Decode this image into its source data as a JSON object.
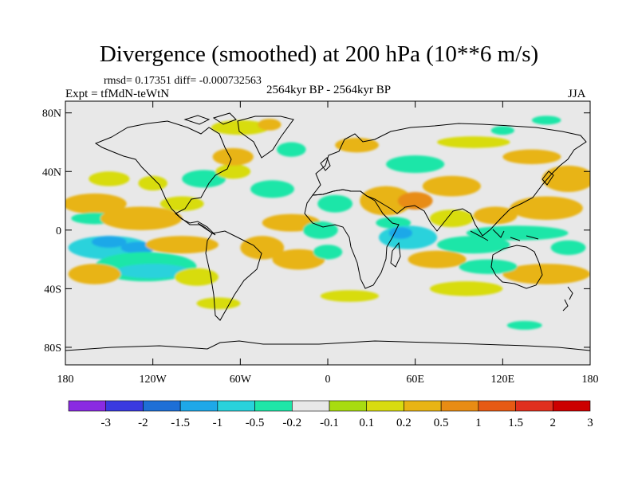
{
  "header": {
    "title": "Divergence (smoothed) at 200 hPa (10**6 m/s)",
    "stats": "rmsd= 0.17351  diff= -0.000732563",
    "expt": "Expt = tfMdN-teWtN",
    "period": "2564kyr BP - 2564kyr BP",
    "season": "JJA"
  },
  "chart_data": {
    "type": "heatmap",
    "title": "Divergence (smoothed) at 200 hPa (10**6 m/s)",
    "subtitle": "2564kyr BP - 2564kyr BP",
    "season": "JJA",
    "xlabel": "",
    "ylabel": "",
    "xlim": [
      -180,
      180
    ],
    "ylim": [
      -90,
      90
    ],
    "x_ticks": [
      -180,
      -120,
      -60,
      0,
      60,
      120,
      180
    ],
    "x_tick_labels": [
      "180",
      "120W",
      "60W",
      "0",
      "60E",
      "120E",
      "180"
    ],
    "y_ticks": [
      80,
      40,
      0,
      -40,
      -80
    ],
    "y_tick_labels": [
      "80N",
      "40N",
      "0",
      "40S",
      "80S"
    ],
    "colorbar": {
      "levels": [
        -3,
        -2,
        -1.5,
        -1,
        -0.5,
        -0.2,
        -0.1,
        0.1,
        0.2,
        0.5,
        1,
        1.5,
        2,
        3
      ],
      "labels": [
        "-3",
        "-2",
        "-1.5",
        "-1",
        "-0.5",
        "-0.2",
        "-0.1",
        "0.1",
        "0.2",
        "0.5",
        "1",
        "1.5",
        "2",
        "3"
      ],
      "colors": [
        "#8a2be2",
        "#3a3ae0",
        "#1e6fd6",
        "#1ea8e8",
        "#29d2dc",
        "#1ee6a8",
        "#e8e8e8",
        "#a8dc10",
        "#d8dc10",
        "#e8b414",
        "#e88c14",
        "#e65a14",
        "#e0301e",
        "#cc0000"
      ]
    },
    "blobs": [
      {
        "lon": -160,
        "lat": 18,
        "rlon": 22,
        "rlat": 7,
        "value": 0.3
      },
      {
        "lon": -160,
        "lat": 8,
        "rlon": 16,
        "rlat": 4,
        "value": -0.3
      },
      {
        "lon": -128,
        "lat": 8,
        "rlon": 28,
        "rlat": 8,
        "value": 0.3
      },
      {
        "lon": -150,
        "lat": -12,
        "rlon": 28,
        "rlat": 8,
        "value": -0.6
      },
      {
        "lon": -150,
        "lat": -8,
        "rlon": 12,
        "rlat": 4,
        "value": -1.1
      },
      {
        "lon": -130,
        "lat": -12,
        "rlon": 12,
        "rlat": 4,
        "value": -1.1
      },
      {
        "lon": -125,
        "lat": -25,
        "rlon": 35,
        "rlat": 10,
        "value": -0.3
      },
      {
        "lon": -120,
        "lat": -28,
        "rlon": 25,
        "rlat": 5,
        "value": -0.7
      },
      {
        "lon": -160,
        "lat": -30,
        "rlon": 18,
        "rlat": 7,
        "value": 0.4
      },
      {
        "lon": -100,
        "lat": -10,
        "rlon": 25,
        "rlat": 6,
        "value": 0.3
      },
      {
        "lon": -90,
        "lat": -32,
        "rlon": 15,
        "rlat": 6,
        "value": 0.15
      },
      {
        "lon": -150,
        "lat": 35,
        "rlon": 14,
        "rlat": 5,
        "value": 0.15
      },
      {
        "lon": -120,
        "lat": 32,
        "rlon": 10,
        "rlat": 5,
        "value": 0.15
      },
      {
        "lon": -100,
        "lat": 18,
        "rlon": 15,
        "rlat": 5,
        "value": 0.15
      },
      {
        "lon": -85,
        "lat": 35,
        "rlon": 15,
        "rlat": 6,
        "value": -0.3
      },
      {
        "lon": -65,
        "lat": 40,
        "rlon": 12,
        "rlat": 5,
        "value": 0.15
      },
      {
        "lon": -65,
        "lat": 50,
        "rlon": 14,
        "rlat": 6,
        "value": 0.3
      },
      {
        "lon": -60,
        "lat": 70,
        "rlon": 20,
        "rlat": 5,
        "value": 0.15
      },
      {
        "lon": -25,
        "lat": 55,
        "rlon": 10,
        "rlat": 5,
        "value": -0.3
      },
      {
        "lon": -38,
        "lat": 28,
        "rlon": 15,
        "rlat": 6,
        "value": -0.3
      },
      {
        "lon": -25,
        "lat": 5,
        "rlon": 20,
        "rlat": 6,
        "value": 0.3
      },
      {
        "lon": -45,
        "lat": -12,
        "rlon": 15,
        "rlat": 8,
        "value": 0.3
      },
      {
        "lon": -20,
        "lat": -20,
        "rlon": 18,
        "rlat": 7,
        "value": 0.3
      },
      {
        "lon": -5,
        "lat": 0,
        "rlon": 12,
        "rlat": 6,
        "value": -0.3
      },
      {
        "lon": 0,
        "lat": -15,
        "rlon": 10,
        "rlat": 5,
        "value": -0.3
      },
      {
        "lon": 5,
        "lat": 18,
        "rlon": 12,
        "rlat": 6,
        "value": -0.3
      },
      {
        "lon": 40,
        "lat": 20,
        "rlon": 18,
        "rlat": 10,
        "value": 0.3
      },
      {
        "lon": 45,
        "lat": 5,
        "rlon": 12,
        "rlat": 4,
        "value": -0.3
      },
      {
        "lon": 55,
        "lat": -5,
        "rlon": 20,
        "rlat": 8,
        "value": -0.6
      },
      {
        "lon": 50,
        "lat": -2,
        "rlon": 8,
        "rlat": 4,
        "value": -1.1
      },
      {
        "lon": 60,
        "lat": 20,
        "rlon": 12,
        "rlat": 6,
        "value": 0.6
      },
      {
        "lon": 85,
        "lat": 30,
        "rlon": 20,
        "rlat": 7,
        "value": 0.3
      },
      {
        "lon": 85,
        "lat": 8,
        "rlon": 15,
        "rlat": 6,
        "value": 0.15
      },
      {
        "lon": 75,
        "lat": -20,
        "rlon": 20,
        "rlat": 6,
        "value": 0.3
      },
      {
        "lon": 100,
        "lat": -10,
        "rlon": 25,
        "rlat": 6,
        "value": -0.3
      },
      {
        "lon": 115,
        "lat": 10,
        "rlon": 15,
        "rlat": 6,
        "value": 0.3
      },
      {
        "lon": 130,
        "lat": -2,
        "rlon": 35,
        "rlat": 5,
        "value": -0.5
      },
      {
        "lon": 150,
        "lat": 15,
        "rlon": 25,
        "rlat": 8,
        "value": 0.3
      },
      {
        "lon": 165,
        "lat": 35,
        "rlon": 18,
        "rlat": 9,
        "value": 0.3
      },
      {
        "lon": 140,
        "lat": 50,
        "rlon": 20,
        "rlat": 5,
        "value": 0.3
      },
      {
        "lon": 100,
        "lat": 60,
        "rlon": 25,
        "rlat": 4,
        "value": 0.15
      },
      {
        "lon": 60,
        "lat": 45,
        "rlon": 20,
        "rlat": 6,
        "value": -0.3
      },
      {
        "lon": 20,
        "lat": 58,
        "rlon": 15,
        "rlat": 5,
        "value": 0.3
      },
      {
        "lon": 150,
        "lat": -30,
        "rlon": 30,
        "rlat": 7,
        "value": 0.3
      },
      {
        "lon": 165,
        "lat": -12,
        "rlon": 12,
        "rlat": 5,
        "value": -0.3
      },
      {
        "lon": 110,
        "lat": -25,
        "rlon": 20,
        "rlat": 5,
        "value": -0.3
      },
      {
        "lon": 95,
        "lat": -40,
        "rlon": 25,
        "rlat": 5,
        "value": 0.15
      },
      {
        "lon": 15,
        "lat": -45,
        "rlon": 20,
        "rlat": 4,
        "value": 0.15
      },
      {
        "lon": -75,
        "lat": -50,
        "rlon": 15,
        "rlat": 4,
        "value": 0.15
      },
      {
        "lon": 135,
        "lat": -65,
        "rlon": 12,
        "rlat": 3,
        "value": -0.3
      },
      {
        "lon": 150,
        "lat": 75,
        "rlon": 10,
        "rlat": 3,
        "value": -0.3
      },
      {
        "lon": -40,
        "lat": 72,
        "rlon": 8,
        "rlat": 4,
        "value": 0.3
      },
      {
        "lon": 120,
        "lat": 68,
        "rlon": 8,
        "rlat": 3,
        "value": -0.3
      }
    ]
  }
}
